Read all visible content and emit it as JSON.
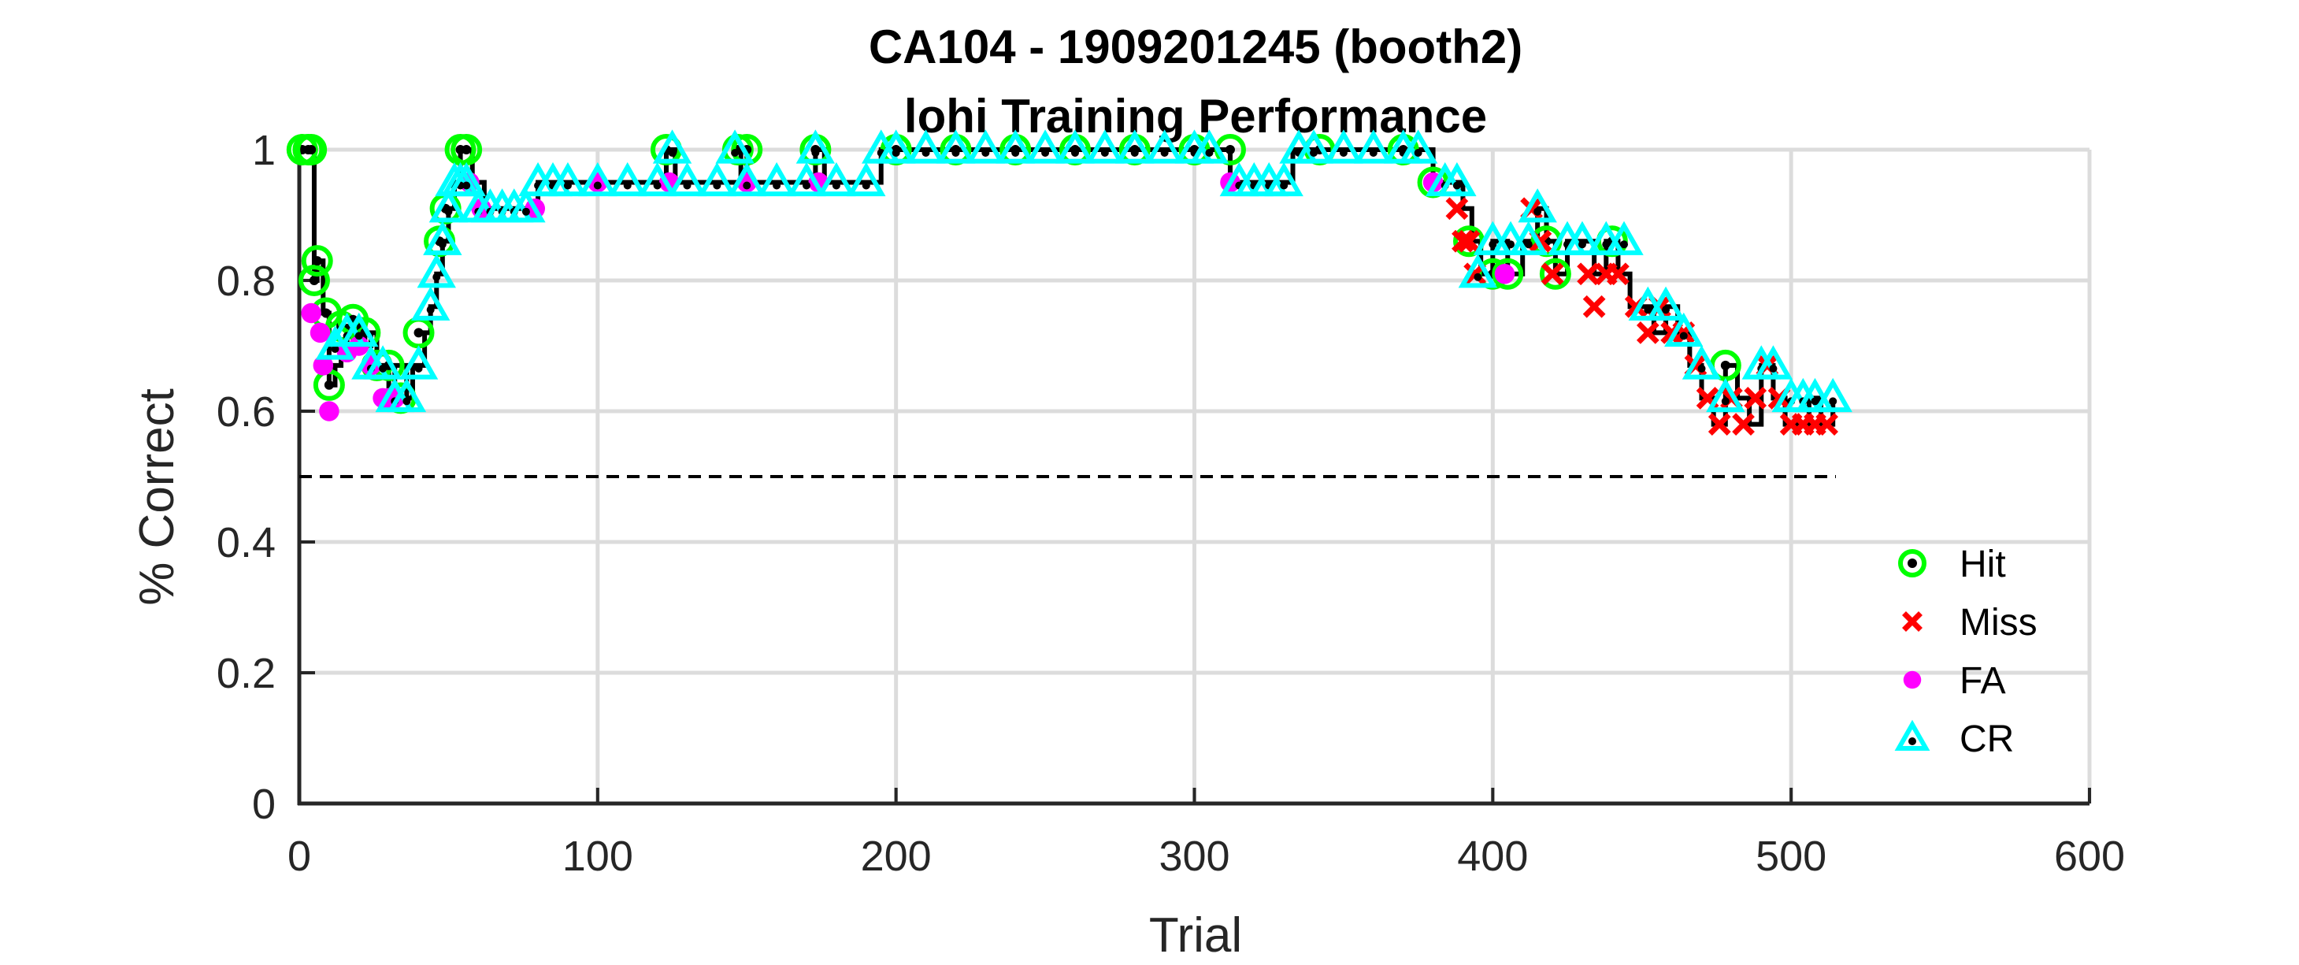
{
  "chart_data": {
    "type": "line",
    "title": [
      "CA104 - 1909201245 (booth2)",
      "lohi Training Performance"
    ],
    "xlabel": "Trial",
    "ylabel": "% Correct",
    "xlim": [
      0,
      600
    ],
    "ylim": [
      0,
      1
    ],
    "xticks": [
      "0",
      "100",
      "200",
      "300",
      "400",
      "500",
      "600"
    ],
    "yticks": [
      "0",
      "0.2",
      "0.4",
      "0.6",
      "0.8",
      "1"
    ],
    "grid": true,
    "legend_position": "right",
    "chance_line": {
      "y": 0.5,
      "x": [
        0,
        515
      ],
      "style": "dashed"
    },
    "performance_line": {
      "x": [
        1,
        3,
        5,
        6,
        8,
        10,
        12,
        14,
        16,
        18,
        20,
        22,
        24,
        26,
        28,
        30,
        32,
        34,
        36,
        38,
        40,
        42,
        44,
        46,
        48,
        50,
        52,
        54,
        56,
        58,
        62,
        66,
        70,
        75,
        80,
        85,
        100,
        120,
        123,
        126,
        145,
        148,
        150,
        170,
        173,
        176,
        190,
        195,
        200,
        310,
        312,
        315,
        330,
        333,
        370,
        378,
        380,
        385,
        390,
        393,
        396,
        400,
        405,
        410,
        415,
        418,
        421,
        425,
        430,
        434,
        438,
        442,
        446,
        450,
        454,
        458,
        462,
        466,
        470,
        474,
        478,
        482,
        486,
        490,
        494,
        498,
        502,
        506,
        510,
        514
      ],
      "y": [
        1,
        1,
        0.8,
        0.83,
        0.75,
        0.64,
        0.67,
        0.7,
        0.73,
        0.7,
        0.74,
        0.7,
        0.72,
        0.67,
        0.67,
        0.62,
        0.67,
        0.67,
        0.62,
        0.67,
        0.67,
        0.72,
        0.76,
        0.81,
        0.86,
        0.91,
        0.95,
        1,
        1,
        0.95,
        0.91,
        0.91,
        0.91,
        0.91,
        0.95,
        0.95,
        0.95,
        0.95,
        1,
        0.95,
        0.95,
        1,
        0.95,
        0.95,
        1,
        0.95,
        0.95,
        1,
        1,
        1,
        0.95,
        0.95,
        0.95,
        1,
        1,
        1,
        0.95,
        0.95,
        0.91,
        0.86,
        0.81,
        0.86,
        0.81,
        0.86,
        0.91,
        0.86,
        0.81,
        0.86,
        0.86,
        0.81,
        0.86,
        0.81,
        0.76,
        0.76,
        0.72,
        0.76,
        0.72,
        0.67,
        0.62,
        0.58,
        0.67,
        0.62,
        0.58,
        0.67,
        0.62,
        0.58,
        0.58,
        0.62,
        0.58,
        0.62
      ]
    },
    "series": [
      {
        "name": "Hit",
        "marker": "circle-open",
        "color": "#00ff00",
        "x": [
          1,
          3,
          4,
          5,
          6,
          9,
          10,
          14,
          18,
          22,
          26,
          30,
          34,
          40,
          47,
          49,
          54,
          56,
          123,
          147,
          150,
          173,
          200,
          220,
          240,
          260,
          280,
          300,
          312,
          342,
          370,
          380,
          392,
          400,
          405,
          418,
          421,
          440,
          478
        ],
        "y": [
          1,
          1,
          1,
          0.8,
          0.83,
          0.75,
          0.64,
          0.73,
          0.74,
          0.72,
          0.67,
          0.67,
          0.62,
          0.72,
          0.86,
          0.91,
          1,
          1,
          1,
          1,
          1,
          1,
          1,
          1,
          1,
          1,
          1,
          1,
          1,
          1,
          1,
          0.95,
          0.86,
          0.81,
          0.81,
          0.86,
          0.81,
          0.86,
          0.67
        ]
      },
      {
        "name": "Miss",
        "marker": "x",
        "color": "#ff0000",
        "x": [
          388,
          390,
          392,
          394,
          413,
          416,
          420,
          432,
          434,
          438,
          442,
          448,
          452,
          456,
          460,
          464,
          468,
          472,
          476,
          480,
          484,
          488,
          492,
          496,
          500,
          504,
          508,
          512
        ],
        "y": [
          0.91,
          0.86,
          0.86,
          0.81,
          0.91,
          0.86,
          0.81,
          0.81,
          0.76,
          0.81,
          0.81,
          0.76,
          0.72,
          0.76,
          0.72,
          0.72,
          0.67,
          0.62,
          0.58,
          0.62,
          0.58,
          0.62,
          0.67,
          0.62,
          0.58,
          0.58,
          0.58,
          0.58
        ]
      },
      {
        "name": "FA",
        "marker": "dot",
        "color": "#ff00ff",
        "x": [
          4,
          7,
          8,
          10,
          16,
          20,
          24,
          28,
          30,
          32,
          57,
          61,
          79,
          100,
          124,
          150,
          174,
          312,
          380,
          404
        ],
        "y": [
          0.75,
          0.72,
          0.67,
          0.6,
          0.69,
          0.7,
          0.67,
          0.62,
          0.62,
          0.62,
          0.95,
          0.91,
          0.91,
          0.95,
          0.95,
          0.95,
          0.95,
          0.95,
          0.95,
          0.81
        ]
      },
      {
        "name": "CR",
        "marker": "triangle-open",
        "color": "#00ffff",
        "x": [
          12,
          16,
          20,
          24,
          28,
          32,
          36,
          40,
          44,
          46,
          48,
          50,
          52,
          54,
          56,
          60,
          64,
          68,
          72,
          76,
          80,
          85,
          90,
          100,
          110,
          120,
          125,
          130,
          140,
          146,
          150,
          160,
          170,
          173,
          180,
          190,
          195,
          200,
          210,
          220,
          230,
          240,
          250,
          260,
          270,
          280,
          290,
          300,
          305,
          315,
          320,
          325,
          330,
          335,
          340,
          350,
          360,
          370,
          375,
          384,
          388,
          395,
          400,
          406,
          412,
          415,
          425,
          430,
          438,
          444,
          452,
          458,
          464,
          470,
          478,
          490,
          494,
          500,
          504,
          508,
          514
        ],
        "y": [
          0.7,
          0.72,
          0.72,
          0.67,
          0.67,
          0.62,
          0.62,
          0.67,
          0.76,
          0.81,
          0.86,
          0.91,
          0.95,
          0.95,
          0.95,
          0.91,
          0.91,
          0.91,
          0.91,
          0.91,
          0.95,
          0.95,
          0.95,
          0.95,
          0.95,
          0.95,
          1,
          0.95,
          0.95,
          1,
          0.95,
          0.95,
          0.95,
          1,
          0.95,
          0.95,
          1,
          1,
          1,
          1,
          1,
          1,
          1,
          1,
          1,
          1,
          1,
          1,
          1,
          0.95,
          0.95,
          0.95,
          0.95,
          1,
          1,
          1,
          1,
          1,
          1,
          0.95,
          0.95,
          0.81,
          0.86,
          0.86,
          0.86,
          0.91,
          0.86,
          0.86,
          0.86,
          0.86,
          0.76,
          0.76,
          0.72,
          0.67,
          0.62,
          0.67,
          0.67,
          0.62,
          0.62,
          0.62,
          0.62
        ]
      }
    ]
  }
}
